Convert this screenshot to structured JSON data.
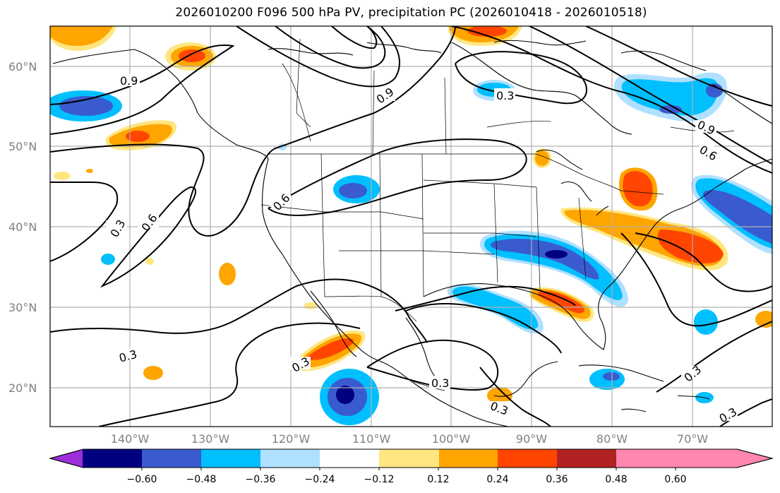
{
  "title": "2026010200 F096 500 hPa PV, precipitation PC (2026010418 - 2026010518)",
  "latitude_labels": [
    "60°N",
    "50°N",
    "40°N",
    "30°N",
    "20°N"
  ],
  "longitude_labels": [
    "140°W",
    "130°W",
    "120°W",
    "110°W",
    "100°W",
    "90°W",
    "80°W",
    "70°W"
  ],
  "colorbar": {
    "tick_labels": [
      "−0.60",
      "−0.48",
      "−0.36",
      "−0.24",
      "−0.12",
      "0.12",
      "0.24",
      "0.36",
      "0.48",
      "0.60"
    ],
    "colors": [
      "#9b30d9",
      "#000080",
      "#3a5bcf",
      "#00bfff",
      "#b0e0ff",
      "#ffffff",
      "#ffe680",
      "#ffa500",
      "#ff4500",
      "#b22222",
      "#ff86b0"
    ]
  },
  "contour_labels": {
    "a": "0.9",
    "b": "0.9",
    "c": "0.3",
    "d": "0.9",
    "e": "0.6",
    "f": "0.6",
    "g": "0.3",
    "h": "0.6",
    "i": "0.3",
    "j": "0.3",
    "k": "0.3",
    "l": "0.3",
    "m": "0.3",
    "n": "0.3"
  }
}
